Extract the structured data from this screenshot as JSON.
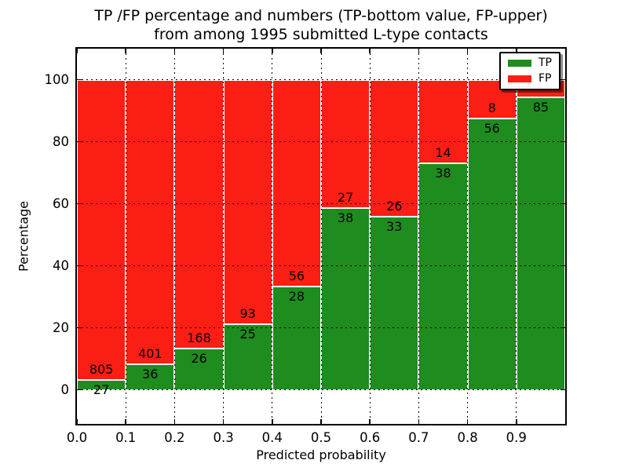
{
  "chart_data": {
    "type": "bar",
    "stacked": true,
    "title_line1": "TP /FP percentage and numbers (TP-bottom value, FP-upper)",
    "title_line2": "from among 1995 submitted L-type contacts",
    "xlabel": "Predicted probability",
    "ylabel": "Percentage",
    "xlim": [
      0.0,
      1.0
    ],
    "ylim": [
      -11,
      110
    ],
    "x_ticks": [
      0.0,
      0.1,
      0.2,
      0.3,
      0.4,
      0.5,
      0.6,
      0.7,
      0.8,
      0.9
    ],
    "x_tick_labels": [
      "0.0",
      "0.1",
      "0.2",
      "0.3",
      "0.4",
      "0.5",
      "0.6",
      "0.7",
      "0.8",
      "0.9"
    ],
    "y_ticks": [
      0,
      20,
      40,
      60,
      80,
      100
    ],
    "y_tick_labels": [
      "0",
      "20",
      "40",
      "60",
      "80",
      "100"
    ],
    "grid": "dotted",
    "legend": {
      "position": "upper right",
      "entries": [
        {
          "label": "TP",
          "color": "#1e8c1e"
        },
        {
          "label": "FP",
          "color": "#fb1e15"
        }
      ]
    },
    "bins": [
      {
        "x_start": 0.0,
        "x_end": 0.1,
        "tp_count": 27,
        "fp_count": 805,
        "tp_pct": 3.2,
        "fp_pct": 96.8,
        "tp_label": "27",
        "fp_label": "805"
      },
      {
        "x_start": 0.1,
        "x_end": 0.2,
        "tp_count": 36,
        "fp_count": 401,
        "tp_pct": 8.2,
        "fp_pct": 91.8,
        "tp_label": "36",
        "fp_label": "401"
      },
      {
        "x_start": 0.2,
        "x_end": 0.3,
        "tp_count": 26,
        "fp_count": 168,
        "tp_pct": 13.4,
        "fp_pct": 86.6,
        "tp_label": "26",
        "fp_label": "168"
      },
      {
        "x_start": 0.3,
        "x_end": 0.4,
        "tp_count": 25,
        "fp_count": 93,
        "tp_pct": 21.2,
        "fp_pct": 78.8,
        "tp_label": "25",
        "fp_label": "93"
      },
      {
        "x_start": 0.4,
        "x_end": 0.5,
        "tp_count": 28,
        "fp_count": 56,
        "tp_pct": 33.3,
        "fp_pct": 66.7,
        "tp_label": "28",
        "fp_label": "56"
      },
      {
        "x_start": 0.5,
        "x_end": 0.6,
        "tp_count": 38,
        "fp_count": 27,
        "tp_pct": 58.5,
        "fp_pct": 41.5,
        "tp_label": "38",
        "fp_label": "27"
      },
      {
        "x_start": 0.6,
        "x_end": 0.7,
        "tp_count": 33,
        "fp_count": 26,
        "tp_pct": 55.9,
        "fp_pct": 44.1,
        "tp_label": "33",
        "fp_label": "26"
      },
      {
        "x_start": 0.7,
        "x_end": 0.8,
        "tp_count": 38,
        "fp_count": 14,
        "tp_pct": 73.1,
        "fp_pct": 26.9,
        "tp_label": "38",
        "fp_label": "14"
      },
      {
        "x_start": 0.8,
        "x_end": 0.9,
        "tp_count": 56,
        "fp_count": 8,
        "tp_pct": 87.5,
        "fp_pct": 12.5,
        "tp_label": "56",
        "fp_label": "8"
      },
      {
        "x_start": 0.9,
        "x_end": 1.0,
        "tp_count": 85,
        "fp_count": null,
        "tp_pct": 94.4,
        "fp_pct": 5.6,
        "tp_label": "85",
        "fp_label": ""
      }
    ]
  },
  "colors": {
    "tp": "#1e8c1e",
    "fp": "#fb1e15",
    "background": "#ffffff",
    "frame": "#000000",
    "grid": "#000000"
  }
}
